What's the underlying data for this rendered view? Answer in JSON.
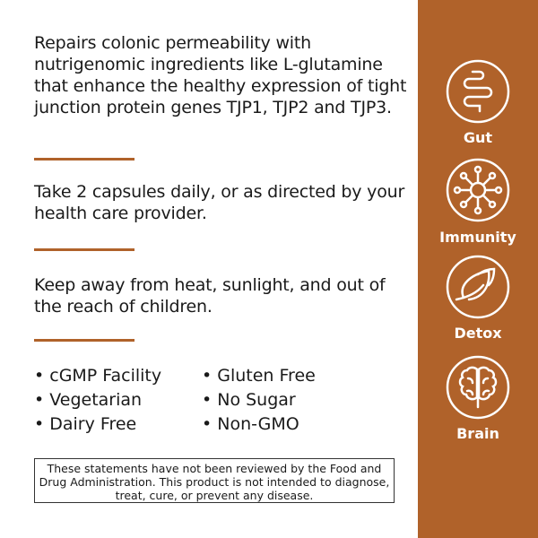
{
  "description": "Repairs colonic permeability with nutrigenomic ingredients like L-glutamine that enhance the healthy expression of tight junction protein genes TJP1, TJP2 and TJP3.",
  "directions": "Take 2 capsules daily, or as directed by your health care provider.",
  "warning": "Keep away from heat, sunlight, and out of the reach of children.",
  "features_left": [
    "• cGMP Facility",
    "• Vegetarian",
    "• Dairy Free"
  ],
  "features_right": [
    "• Gluten Free",
    "• No Sugar",
    "• Non-GMO"
  ],
  "disclaimer": "These statements have not been reviewed by the Food and Drug Administration. This product is not intended to diagnose, treat, cure,  or prevent any disease.",
  "benefits": [
    {
      "label": "Gut",
      "icon": "intestine-icon"
    },
    {
      "label": "Immunity",
      "icon": "immune-cell-icon"
    },
    {
      "label": "Detox",
      "icon": "leaf-icon"
    },
    {
      "label": "Brain",
      "icon": "brain-icon"
    }
  ],
  "colors": {
    "accent": "#b0622a"
  }
}
